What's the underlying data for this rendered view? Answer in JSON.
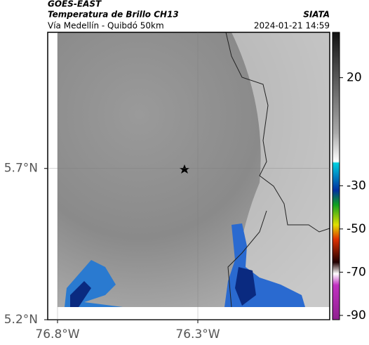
{
  "header": {
    "source": "GOES-EAST",
    "title": "Temperatura de Brillo CH13",
    "subtitle": "Vía Medellín - Quibdó 50km",
    "agency": "SIATA",
    "timestamp": "2024-01-21 14:59"
  },
  "map": {
    "lonlim": [
      -76.835,
      -75.83
    ],
    "latlim": [
      5.2,
      6.15
    ],
    "lonticks": [
      {
        "value": -76.8,
        "label": "76.8°W"
      },
      {
        "value": -76.3,
        "label": "76.3°W"
      }
    ],
    "latticks": [
      {
        "value": 5.7,
        "label": "5.7°N"
      },
      {
        "value": 5.2,
        "label": "5.2°N"
      }
    ]
  },
  "colorbar": {
    "lim": [
      -92,
      41
    ],
    "ticks": [
      20,
      -30,
      -50,
      -70,
      -90
    ]
  }
}
